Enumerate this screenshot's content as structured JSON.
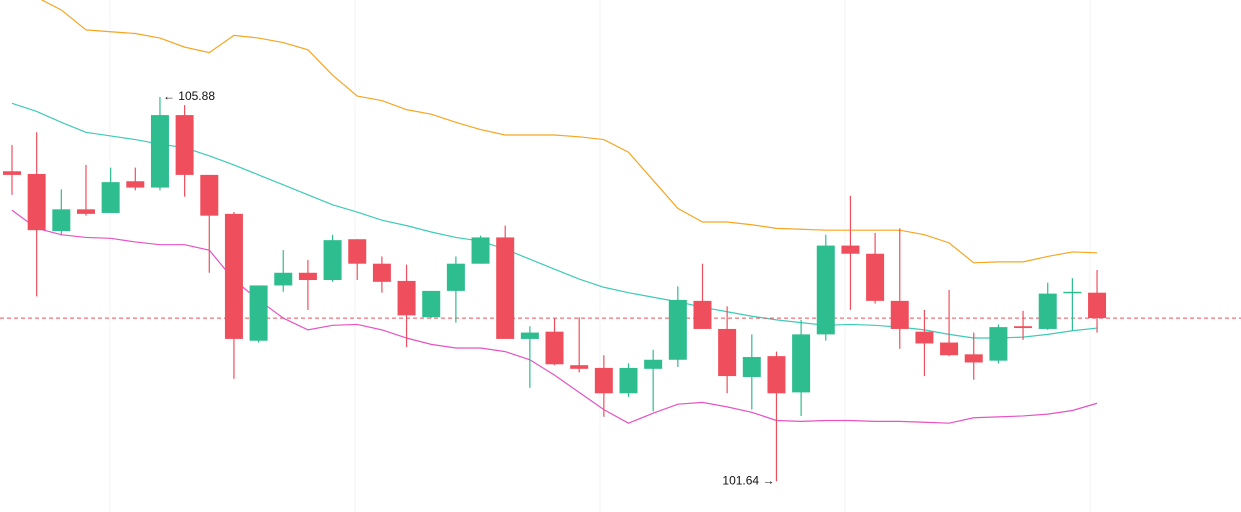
{
  "chart_data": {
    "type": "candlestick",
    "open": [
      105.06,
      105.03,
      104.4,
      104.64,
      104.6,
      104.95,
      104.88,
      105.68,
      105.02,
      104.59,
      103.19,
      103.8,
      103.94,
      103.86,
      104.31,
      104.04,
      103.85,
      103.45,
      103.74,
      104.04,
      104.33,
      103.21,
      103.29,
      102.92,
      102.89,
      102.61,
      102.88,
      102.98,
      103.63,
      103.32,
      102.79,
      103.02,
      102.62,
      103.26,
      104.24,
      104.15,
      103.63,
      103.29,
      103.17,
      103.04,
      102.97,
      103.35,
      103.32,
      103.72,
      103.72
    ],
    "high": [
      105.35,
      105.49,
      104.86,
      105.13,
      105.1,
      105.1,
      105.88,
      105.79,
      105.02,
      104.61,
      103.8,
      104.19,
      104.08,
      104.36,
      104.31,
      104.12,
      104.03,
      103.74,
      104.12,
      104.35,
      104.46,
      103.35,
      103.44,
      103.45,
      103.03,
      102.94,
      103.09,
      103.79,
      104.04,
      103.57,
      103.26,
      103.07,
      103.42,
      104.36,
      104.79,
      104.38,
      104.43,
      103.53,
      103.75,
      103.28,
      103.37,
      103.52,
      103.83,
      103.88,
      103.97
    ],
    "low": [
      104.8,
      103.68,
      104.35,
      104.57,
      104.6,
      104.85,
      104.85,
      104.78,
      103.94,
      102.77,
      103.17,
      103.73,
      103.53,
      103.84,
      103.86,
      103.72,
      103.12,
      103.44,
      103.39,
      104.04,
      103.21,
      102.67,
      102.92,
      102.84,
      102.35,
      102.57,
      102.41,
      102.9,
      103.32,
      102.61,
      102.43,
      101.64,
      102.36,
      103.19,
      103.53,
      103.6,
      103.1,
      102.8,
      103.02,
      102.76,
      102.94,
      103.2,
      103.31,
      103.3,
      103.28
    ],
    "close": [
      105.02,
      104.41,
      104.64,
      104.59,
      104.94,
      104.88,
      105.68,
      105.02,
      104.57,
      103.21,
      103.8,
      103.94,
      103.86,
      104.3,
      104.04,
      103.84,
      103.47,
      103.74,
      104.04,
      104.33,
      103.21,
      103.28,
      102.93,
      102.88,
      102.61,
      102.89,
      102.98,
      103.64,
      103.32,
      102.8,
      103.01,
      102.61,
      103.26,
      104.24,
      104.15,
      103.63,
      103.32,
      103.16,
      103.03,
      102.95,
      103.34,
      103.33,
      103.71,
      103.73,
      103.44
    ],
    "up_color": "#2ebd8e",
    "down_color": "#ef4f5c",
    "bands": [
      {
        "color": "#f5a623",
        "values": [
          null,
          106.98,
          106.84,
          106.62,
          106.6,
          106.58,
          106.53,
          106.43,
          106.37,
          106.56,
          106.53,
          106.48,
          106.4,
          106.12,
          105.89,
          105.84,
          105.74,
          105.69,
          105.6,
          105.52,
          105.46,
          105.46,
          105.46,
          105.44,
          105.41,
          105.27,
          104.96,
          104.65,
          104.5,
          104.5,
          104.47,
          104.43,
          104.42,
          104.41,
          104.41,
          104.41,
          104.41,
          104.36,
          104.27,
          104.05,
          104.06,
          104.06,
          104.12,
          104.17,
          104.16
        ]
      },
      {
        "color": "#3ecbb5",
        "values": [
          105.81,
          105.72,
          105.6,
          105.49,
          105.45,
          105.41,
          105.36,
          105.32,
          105.23,
          105.13,
          105.02,
          104.91,
          104.8,
          104.69,
          104.61,
          104.52,
          104.46,
          104.39,
          104.33,
          104.29,
          104.2,
          104.09,
          103.98,
          103.87,
          103.78,
          103.72,
          103.67,
          103.62,
          103.56,
          103.51,
          103.46,
          103.42,
          103.39,
          103.36,
          103.37,
          103.36,
          103.34,
          103.31,
          103.26,
          103.22,
          103.22,
          103.23,
          103.26,
          103.3,
          103.33
        ]
      },
      {
        "color": "#e653c4",
        "values": [
          104.63,
          104.43,
          104.36,
          104.33,
          104.32,
          104.28,
          104.25,
          104.25,
          104.19,
          103.86,
          103.64,
          103.44,
          103.31,
          103.36,
          103.37,
          103.31,
          103.22,
          103.15,
          103.11,
          103.11,
          103.07,
          102.98,
          102.81,
          102.62,
          102.43,
          102.28,
          102.39,
          102.49,
          102.51,
          102.46,
          102.4,
          102.31,
          102.3,
          102.31,
          102.31,
          102.3,
          102.3,
          102.29,
          102.28,
          102.34,
          102.35,
          102.36,
          102.38,
          102.42,
          102.5
        ]
      }
    ],
    "price_line_color": "#ef4f5c",
    "high_label": "← 105.88",
    "low_label": "101.64 →",
    "ylim": [
      101.3,
      106.95
    ]
  }
}
